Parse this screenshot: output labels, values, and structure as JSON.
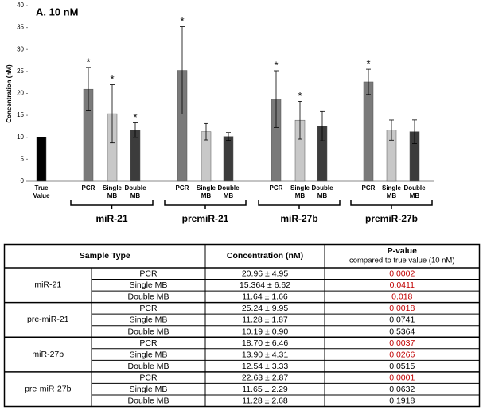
{
  "chart_data": {
    "type": "bar",
    "title": "A. 10 nM",
    "ylabel": "Concentration (nM)",
    "categories": [
      "True Value",
      "PCR",
      "Single MB",
      "Double MB",
      "PCR",
      "Single MB",
      "Double MB",
      "PCR",
      "Single MB",
      "Double MB",
      "PCR",
      "Single MB",
      "Double MB"
    ],
    "values": [
      10,
      20.96,
      15.364,
      11.64,
      25.24,
      11.28,
      10.19,
      18.7,
      13.9,
      12.54,
      22.63,
      11.65,
      11.28
    ],
    "errors": [
      null,
      4.95,
      6.62,
      1.66,
      9.95,
      1.87,
      0.9,
      6.46,
      4.31,
      3.33,
      2.87,
      2.29,
      2.68
    ],
    "colors": [
      "#000000",
      "#7a7a7a",
      "#c8c8c8",
      "#3c3c3c",
      "#7a7a7a",
      "#c8c8c8",
      "#3c3c3c",
      "#7a7a7a",
      "#c8c8c8",
      "#3c3c3c",
      "#7a7a7a",
      "#c8c8c8",
      "#3c3c3c"
    ],
    "stars": [
      null,
      "*",
      "*",
      "*",
      "*",
      null,
      null,
      "*",
      "*",
      null,
      "*",
      null,
      null
    ],
    "groups": [
      "miR-21",
      "premiR-21",
      "miR-27b",
      "premiR-27b"
    ],
    "ylim": [
      0,
      40
    ],
    "yticks": [
      0,
      5,
      10,
      15,
      20,
      25,
      30,
      35,
      40
    ]
  },
  "table": {
    "header": [
      "Sample Type",
      "Concentration (nM)",
      "P-value"
    ],
    "subheader": "compared to true value (10 nM)",
    "groups": [
      {
        "name": "miR-21",
        "rows": [
          [
            "PCR",
            "20.96 ± 4.95",
            "0.0002"
          ],
          [
            "Single MB",
            "15.364 ± 6.62",
            "0.0411"
          ],
          [
            "Double MB",
            "11.64 ± 1.66",
            "0.018"
          ]
        ],
        "p_colors": [
          "#c00000",
          "#c00000",
          "#c00000"
        ]
      },
      {
        "name": "pre-miR-21",
        "rows": [
          [
            "PCR",
            "25.24 ± 9.95",
            "0.0018"
          ],
          [
            "Single MB",
            "11.28 ± 1.87",
            "0.0741"
          ],
          [
            "Double MB",
            "10.19 ± 0.90",
            "0.5364"
          ]
        ],
        "p_colors": [
          "#c00000",
          "#000000",
          "#000000"
        ]
      },
      {
        "name": "miR-27b",
        "rows": [
          [
            "PCR",
            "18.70 ± 6.46",
            "0.0037"
          ],
          [
            "Single MB",
            "13.90 ± 4.31",
            "0.0266"
          ],
          [
            "Double MB",
            "12.54 ± 3.33",
            "0.0515"
          ]
        ],
        "p_colors": [
          "#c00000",
          "#c00000",
          "#000000"
        ]
      },
      {
        "name": "pre-miR-27b",
        "rows": [
          [
            "PCR",
            "22.63 ± 2.87",
            "0.0001"
          ],
          [
            "Single MB",
            "11.65 ± 2.29",
            "0.0632"
          ],
          [
            "Double MB",
            "11.28 ± 2.68",
            "0.1918"
          ]
        ],
        "p_colors": [
          "#c00000",
          "#000000",
          "#000000"
        ]
      }
    ]
  }
}
